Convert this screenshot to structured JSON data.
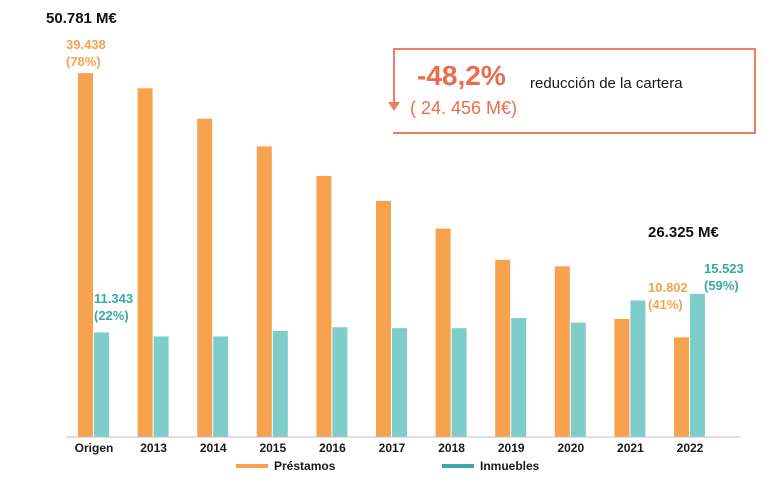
{
  "chart_data": {
    "type": "bar",
    "categories": [
      "Origen",
      "2013",
      "2014",
      "2015",
      "2016",
      "2017",
      "2018",
      "2019",
      "2020",
      "2021",
      "2022"
    ],
    "series": [
      {
        "name": "Préstamos",
        "color": "#f7a24f",
        "values": [
          39438,
          37800,
          34500,
          31500,
          28300,
          25600,
          22600,
          19200,
          18500,
          12800,
          10802
        ]
      },
      {
        "name": "Inmuebles",
        "color": "#7ecdca",
        "values": [
          11343,
          10900,
          10900,
          11500,
          11900,
          11800,
          11800,
          12900,
          12400,
          14800,
          15523
        ]
      }
    ],
    "ylim": [
      0,
      40000
    ],
    "legend_position": "bottom"
  },
  "labels": {
    "origin_total": "50.781 M€",
    "origin_prestamos": "39.438",
    "origin_prestamos_pct": "(78%)",
    "origin_inmuebles": "11.343",
    "origin_inmuebles_pct": "(22%)",
    "final_total": "26.325 M€",
    "final_prestamos": "10.802",
    "final_prestamos_pct": "(41%)",
    "final_inmuebles": "15.523",
    "final_inmuebles_pct": "(59%)"
  },
  "callout": {
    "big": "-48,2%",
    "text": "reducción de la cartera",
    "sub": "( 24. 456 M€)"
  }
}
